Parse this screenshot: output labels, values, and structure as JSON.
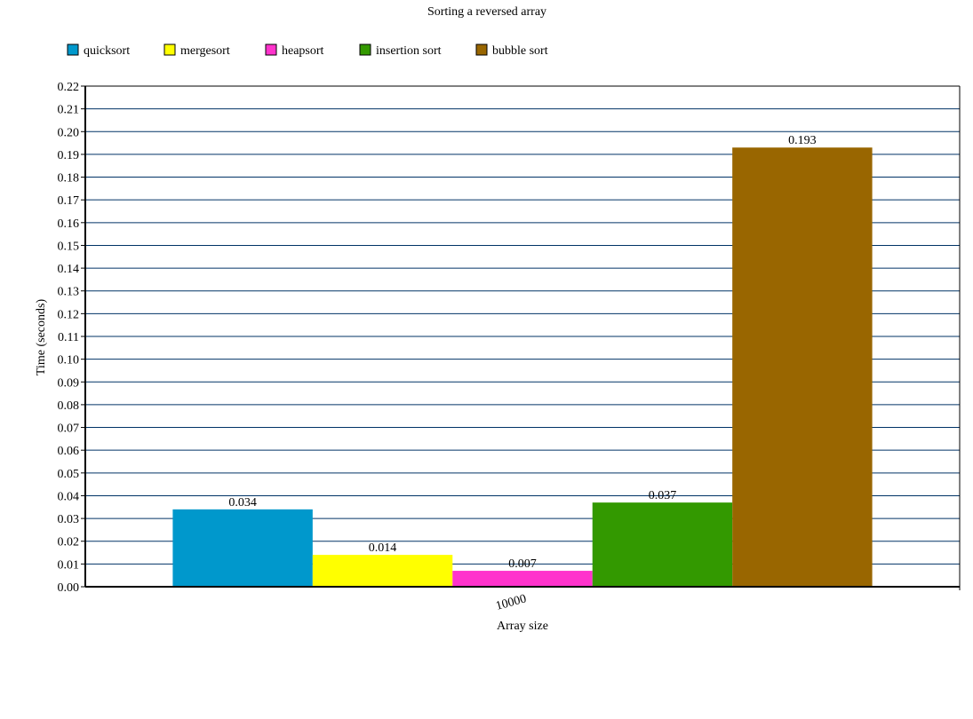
{
  "chart_data": {
    "type": "bar",
    "title": "Sorting a reversed array",
    "xlabel": "Array size",
    "ylabel": "Time (seconds)",
    "categories": [
      "10000"
    ],
    "ylim": [
      0,
      0.22
    ],
    "ytick_step": 0.01,
    "ytick_decimals": 2,
    "grid": true,
    "legend_position": "top-left",
    "series": [
      {
        "name": "quicksort",
        "values": [
          0.034
        ],
        "label": "0.034",
        "color": "#0098CC"
      },
      {
        "name": "mergesort",
        "values": [
          0.014
        ],
        "label": "0.014",
        "color": "#FFFF00"
      },
      {
        "name": "heapsort",
        "values": [
          0.007
        ],
        "label": "0.007",
        "color": "#FF33CC"
      },
      {
        "name": "insertion sort",
        "values": [
          0.037
        ],
        "label": "0.037",
        "color": "#339900"
      },
      {
        "name": "bubble sort",
        "values": [
          0.193
        ],
        "label": "0.193",
        "color": "#996600"
      }
    ],
    "colors": {
      "grid": "#003366",
      "axis": "#000000"
    }
  }
}
